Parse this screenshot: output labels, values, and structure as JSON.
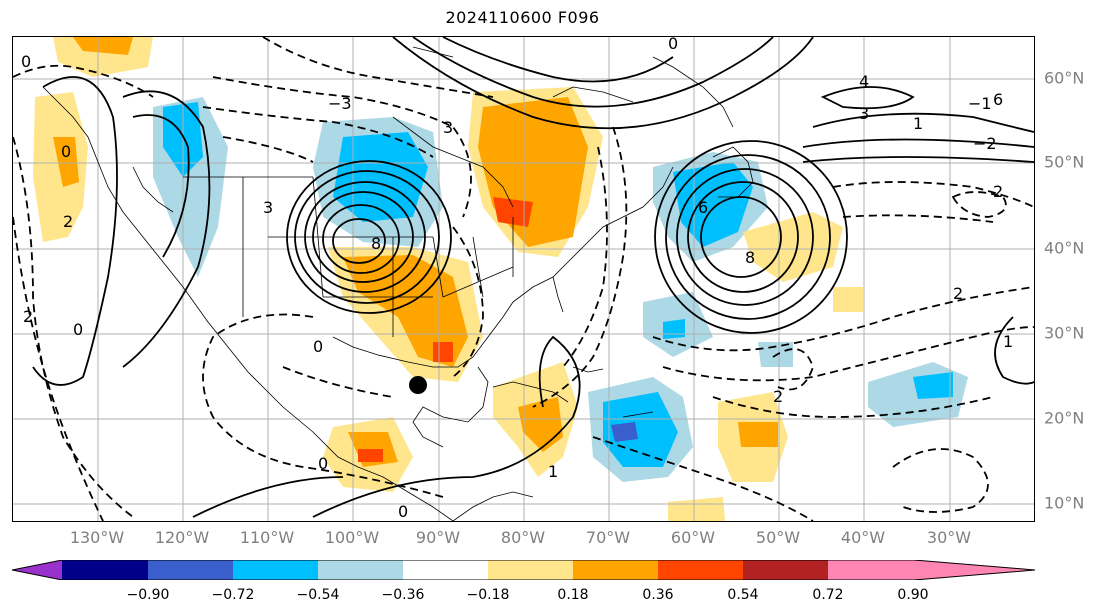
{
  "title": "2024110600 F096",
  "longitude_labels": [
    "130°W",
    "120°W",
    "110°W",
    "100°W",
    "90°W",
    "80°W",
    "70°W",
    "60°W",
    "50°W",
    "40°W",
    "30°W"
  ],
  "latitude_labels": [
    "60°N",
    "50°N",
    "40°N",
    "30°N",
    "20°N",
    "10°N"
  ],
  "colorbar": {
    "ticks": [
      "−0.90",
      "−0.72",
      "−0.54",
      "−0.36",
      "−0.18",
      "0.18",
      "0.36",
      "0.54",
      "0.72",
      "0.90"
    ],
    "colors": [
      "#9932cc",
      "#00008b",
      "#3a5fcd",
      "#00bfff",
      "#add8e6",
      "#ffffff",
      "#ffe68c",
      "#ffa500",
      "#ff4500",
      "#b22222",
      "#ff85b3"
    ]
  },
  "contour_labels": [
    "0",
    "0",
    "0",
    "0",
    "0",
    "0",
    "0",
    "1",
    "1",
    "1",
    "2",
    "2",
    "2",
    "2",
    "2",
    "3",
    "3",
    "3",
    "4",
    "6",
    "6",
    "8",
    "8",
    "−1",
    "−2",
    "−3"
  ],
  "marker": "black-dot"
}
